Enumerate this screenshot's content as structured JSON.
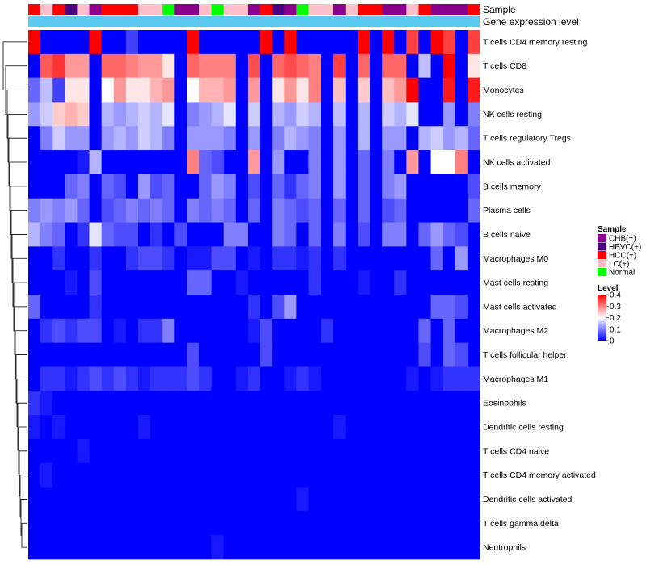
{
  "chart_data": {
    "type": "heatmap",
    "annotation_labels": {
      "sample": "Sample",
      "gene_expression": "Gene expression level"
    },
    "rows": [
      "T cells CD4 memory resting",
      "T cells CD8",
      "Monocytes",
      "NK cells resting",
      "T cells regulatory  Tregs",
      "NK cells activated",
      "B cells memory",
      "Plasma cells",
      "B cells naive",
      "Macrophages M0",
      "Mast cells resting",
      "Mast cells activated",
      "Macrophages M2",
      "T cells follicular helper",
      "Macrophages M1",
      "Eosinophils",
      "Dendritic cells resting",
      "T cells CD4 naive",
      "T cells CD4 memory activated",
      "Dendritic cells activated",
      "T cells gamma delta",
      "Neutrophils"
    ],
    "column_samples": [
      "HCC(+)",
      "LC(+)",
      "HCC(+)",
      "HBVC(+)",
      "LC(+)",
      "CHB(+)",
      "HCC(+)",
      "HCC(+)",
      "HCC(+)",
      "LC(+)",
      "LC(+)",
      "Normal",
      "CHB(+)",
      "CHB(+)",
      "LC(+)",
      "Normal",
      "LC(+)",
      "LC(+)",
      "CHB(+)",
      "HCC(+)",
      "HBVC(+)",
      "CHB(+)",
      "Normal",
      "LC(+)",
      "LC(+)",
      "CHB(+)",
      "LC(+)",
      "HCC(+)",
      "HCC(+)",
      "CHB(+)",
      "CHB(+)",
      "LC(+)",
      "HCC(+)",
      "CHB(+)",
      "CHB(+)",
      "CHB(+)",
      "HCC(+)"
    ],
    "values": [
      [
        0.4,
        0.0,
        0.0,
        0.0,
        0.0,
        0.4,
        0.0,
        0.0,
        0.05,
        0.0,
        0.0,
        0.0,
        0.0,
        0.4,
        0.0,
        0.0,
        0.0,
        0.0,
        0.0,
        0.4,
        0.0,
        0.4,
        0.0,
        0.0,
        0.0,
        0.0,
        0.0,
        0.4,
        0.0,
        0.4,
        0.0,
        0.35,
        0.0,
        0.4,
        0.35,
        0.0,
        0.35
      ],
      [
        0.0,
        0.33,
        0.36,
        0.28,
        0.28,
        0.0,
        0.32,
        0.32,
        0.3,
        0.28,
        0.28,
        0.22,
        0.0,
        0.32,
        0.3,
        0.3,
        0.3,
        0.0,
        0.34,
        0.0,
        0.32,
        0.34,
        0.32,
        0.3,
        0.0,
        0.35,
        0.0,
        0.32,
        0.0,
        0.32,
        0.32,
        0.0,
        0.15,
        0.0,
        0.4,
        0.0,
        0.22
      ],
      [
        0.08,
        0.15,
        0.05,
        0.22,
        0.22,
        0.0,
        0.2,
        0.28,
        0.22,
        0.22,
        0.26,
        0.28,
        0.0,
        0.2,
        0.26,
        0.26,
        0.28,
        0.0,
        0.28,
        0.0,
        0.22,
        0.28,
        0.22,
        0.3,
        0.0,
        0.25,
        0.0,
        0.24,
        0.0,
        0.25,
        0.28,
        0.4,
        0.0,
        0.0,
        0.38,
        0.0,
        0.38
      ],
      [
        0.12,
        0.16,
        0.24,
        0.26,
        0.24,
        0.0,
        0.14,
        0.12,
        0.14,
        0.16,
        0.14,
        0.18,
        0.0,
        0.1,
        0.12,
        0.14,
        0.18,
        0.0,
        0.16,
        0.0,
        0.14,
        0.12,
        0.16,
        0.14,
        0.0,
        0.15,
        0.0,
        0.14,
        0.0,
        0.16,
        0.14,
        0.18,
        0.0,
        0.0,
        0.12,
        0.0,
        0.1
      ],
      [
        0.0,
        0.1,
        0.16,
        0.12,
        0.12,
        0.0,
        0.12,
        0.14,
        0.12,
        0.16,
        0.14,
        0.1,
        0.0,
        0.12,
        0.12,
        0.12,
        0.1,
        0.0,
        0.12,
        0.0,
        0.1,
        0.14,
        0.12,
        0.1,
        0.0,
        0.12,
        0.0,
        0.14,
        0.0,
        0.12,
        0.12,
        0.0,
        0.14,
        0.16,
        0.12,
        0.14,
        0.08
      ],
      [
        0.0,
        0.0,
        0.0,
        0.0,
        0.02,
        0.14,
        0.0,
        0.0,
        0.0,
        0.0,
        0.0,
        0.0,
        0.0,
        0.3,
        0.08,
        0.06,
        0.0,
        0.0,
        0.28,
        0.0,
        0.12,
        0.0,
        0.0,
        0.1,
        0.0,
        0.12,
        0.0,
        0.08,
        0.0,
        0.1,
        0.0,
        0.28,
        0.0,
        0.2,
        0.2,
        0.3,
        0.0
      ],
      [
        0.0,
        0.0,
        0.0,
        0.08,
        0.1,
        0.0,
        0.08,
        0.06,
        0.0,
        0.12,
        0.06,
        0.08,
        0.0,
        0.0,
        0.08,
        0.12,
        0.1,
        0.0,
        0.06,
        0.0,
        0.08,
        0.04,
        0.08,
        0.1,
        0.0,
        0.12,
        0.0,
        0.08,
        0.0,
        0.1,
        0.12,
        0.0,
        0.0,
        0.0,
        0.0,
        0.0,
        0.06
      ],
      [
        0.1,
        0.12,
        0.1,
        0.12,
        0.08,
        0.0,
        0.06,
        0.08,
        0.1,
        0.08,
        0.1,
        0.08,
        0.0,
        0.1,
        0.08,
        0.1,
        0.08,
        0.0,
        0.08,
        0.0,
        0.1,
        0.08,
        0.06,
        0.08,
        0.0,
        0.08,
        0.0,
        0.08,
        0.0,
        0.06,
        0.08,
        0.0,
        0.0,
        0.0,
        0.0,
        0.0,
        0.08
      ],
      [
        0.14,
        0.1,
        0.08,
        0.0,
        0.04,
        0.18,
        0.08,
        0.06,
        0.06,
        0.0,
        0.04,
        0.0,
        0.06,
        0.0,
        0.0,
        0.0,
        0.1,
        0.1,
        0.0,
        0.0,
        0.1,
        0.08,
        0.0,
        0.08,
        0.0,
        0.1,
        0.0,
        0.06,
        0.0,
        0.1,
        0.1,
        0.0,
        0.08,
        0.12,
        0.08,
        0.06,
        0.0
      ],
      [
        0.0,
        0.0,
        0.04,
        0.0,
        0.0,
        0.04,
        0.0,
        0.0,
        0.04,
        0.06,
        0.06,
        0.04,
        0.0,
        0.02,
        0.02,
        0.06,
        0.06,
        0.0,
        0.02,
        0.0,
        0.04,
        0.04,
        0.02,
        0.04,
        0.0,
        0.04,
        0.0,
        0.0,
        0.0,
        0.0,
        0.0,
        0.0,
        0.0,
        0.08,
        0.0,
        0.12,
        0.0
      ],
      [
        0.0,
        0.0,
        0.0,
        0.02,
        0.0,
        0.06,
        0.0,
        0.0,
        0.0,
        0.0,
        0.0,
        0.0,
        0.0,
        0.08,
        0.08,
        0.0,
        0.0,
        0.02,
        0.0,
        0.0,
        0.0,
        0.0,
        0.0,
        0.04,
        0.0,
        0.0,
        0.0,
        0.02,
        0.0,
        0.0,
        0.04,
        0.0,
        0.0,
        0.0,
        0.0,
        0.0,
        0.0
      ],
      [
        0.08,
        0.0,
        0.0,
        0.0,
        0.0,
        0.04,
        0.0,
        0.0,
        0.0,
        0.0,
        0.0,
        0.0,
        0.0,
        0.0,
        0.0,
        0.0,
        0.0,
        0.0,
        0.04,
        0.0,
        0.06,
        0.12,
        0.0,
        0.0,
        0.0,
        0.0,
        0.0,
        0.0,
        0.0,
        0.0,
        0.0,
        0.0,
        0.0,
        0.08,
        0.08,
        0.06,
        0.0
      ],
      [
        0.0,
        0.04,
        0.06,
        0.04,
        0.06,
        0.06,
        0.0,
        0.02,
        0.0,
        0.04,
        0.04,
        0.1,
        0.0,
        0.0,
        0.0,
        0.0,
        0.0,
        0.0,
        0.02,
        0.06,
        0.0,
        0.0,
        0.0,
        0.0,
        0.04,
        0.0,
        0.0,
        0.0,
        0.0,
        0.0,
        0.0,
        0.0,
        0.08,
        0.0,
        0.08,
        0.0,
        0.0
      ],
      [
        0.0,
        0.0,
        0.0,
        0.0,
        0.0,
        0.0,
        0.0,
        0.0,
        0.0,
        0.0,
        0.0,
        0.0,
        0.0,
        0.06,
        0.0,
        0.0,
        0.0,
        0.0,
        0.0,
        0.06,
        0.0,
        0.0,
        0.0,
        0.0,
        0.0,
        0.0,
        0.0,
        0.0,
        0.0,
        0.0,
        0.0,
        0.0,
        0.06,
        0.0,
        0.08,
        0.06,
        0.0
      ],
      [
        0.0,
        0.04,
        0.04,
        0.02,
        0.04,
        0.06,
        0.04,
        0.06,
        0.04,
        0.02,
        0.04,
        0.04,
        0.04,
        0.06,
        0.04,
        0.0,
        0.0,
        0.02,
        0.04,
        0.0,
        0.0,
        0.02,
        0.04,
        0.02,
        0.0,
        0.0,
        0.0,
        0.0,
        0.0,
        0.0,
        0.0,
        0.02,
        0.0,
        0.02,
        0.04,
        0.04,
        0.04
      ],
      [
        0.04,
        0.02,
        0.0,
        0.0,
        0.0,
        0.0,
        0.0,
        0.0,
        0.0,
        0.0,
        0.0,
        0.0,
        0.0,
        0.0,
        0.0,
        0.0,
        0.0,
        0.0,
        0.0,
        0.0,
        0.0,
        0.0,
        0.0,
        0.0,
        0.0,
        0.0,
        0.0,
        0.0,
        0.0,
        0.0,
        0.0,
        0.0,
        0.0,
        0.0,
        0.0,
        0.0,
        0.0
      ],
      [
        0.02,
        0.0,
        0.02,
        0.0,
        0.0,
        0.0,
        0.0,
        0.0,
        0.0,
        0.02,
        0.0,
        0.0,
        0.0,
        0.0,
        0.0,
        0.0,
        0.0,
        0.0,
        0.0,
        0.0,
        0.0,
        0.0,
        0.0,
        0.0,
        0.0,
        0.02,
        0.0,
        0.0,
        0.0,
        0.0,
        0.0,
        0.0,
        0.0,
        0.0,
        0.0,
        0.0,
        0.0
      ],
      [
        0.0,
        0.0,
        0.0,
        0.0,
        0.02,
        0.0,
        0.0,
        0.0,
        0.0,
        0.0,
        0.0,
        0.0,
        0.0,
        0.0,
        0.0,
        0.0,
        0.0,
        0.0,
        0.0,
        0.0,
        0.0,
        0.0,
        0.0,
        0.0,
        0.0,
        0.0,
        0.0,
        0.0,
        0.0,
        0.0,
        0.0,
        0.0,
        0.0,
        0.0,
        0.0,
        0.0,
        0.0
      ],
      [
        0.0,
        0.02,
        0.0,
        0.0,
        0.0,
        0.0,
        0.0,
        0.0,
        0.0,
        0.0,
        0.0,
        0.0,
        0.0,
        0.0,
        0.0,
        0.0,
        0.0,
        0.0,
        0.0,
        0.0,
        0.0,
        0.0,
        0.0,
        0.0,
        0.0,
        0.0,
        0.0,
        0.0,
        0.0,
        0.0,
        0.0,
        0.0,
        0.0,
        0.0,
        0.0,
        0.0,
        0.0
      ],
      [
        0.0,
        0.0,
        0.0,
        0.0,
        0.0,
        0.0,
        0.0,
        0.0,
        0.0,
        0.0,
        0.0,
        0.0,
        0.0,
        0.0,
        0.0,
        0.0,
        0.0,
        0.0,
        0.0,
        0.0,
        0.0,
        0.0,
        0.02,
        0.0,
        0.0,
        0.0,
        0.0,
        0.0,
        0.0,
        0.0,
        0.0,
        0.0,
        0.0,
        0.0,
        0.0,
        0.0,
        0.0
      ],
      [
        0.0,
        0.0,
        0.0,
        0.0,
        0.0,
        0.0,
        0.0,
        0.0,
        0.0,
        0.0,
        0.0,
        0.0,
        0.0,
        0.0,
        0.0,
        0.0,
        0.0,
        0.0,
        0.0,
        0.0,
        0.0,
        0.0,
        0.0,
        0.0,
        0.0,
        0.0,
        0.0,
        0.0,
        0.0,
        0.0,
        0.0,
        0.0,
        0.0,
        0.0,
        0.0,
        0.0,
        0.0
      ],
      [
        0.0,
        0.0,
        0.0,
        0.0,
        0.0,
        0.0,
        0.0,
        0.0,
        0.0,
        0.0,
        0.0,
        0.0,
        0.0,
        0.0,
        0.0,
        0.02,
        0.0,
        0.0,
        0.0,
        0.0,
        0.0,
        0.0,
        0.0,
        0.0,
        0.0,
        0.0,
        0.0,
        0.0,
        0.0,
        0.0,
        0.0,
        0.0,
        0.0,
        0.0,
        0.0,
        0.0,
        0.0
      ]
    ],
    "color_scale": {
      "min": 0,
      "max": 0.4,
      "low": "#0000FF",
      "mid": "#FFFFFF",
      "high": "#FF0000"
    },
    "legend_sample": {
      "title": "Sample",
      "items": [
        {
          "label": "CHB(+)",
          "color": "#8B008B"
        },
        {
          "label": "HBVC(+)",
          "color": "#4B0082"
        },
        {
          "label": "HCC(+)",
          "color": "#FF0000"
        },
        {
          "label": "LC(+)",
          "color": "#FFC0CB"
        },
        {
          "label": "Normal",
          "color": "#00FF00"
        }
      ]
    },
    "legend_level": {
      "title": "Level",
      "ticks": [
        "0.4",
        "0.3",
        "0.2",
        "0.1",
        "0"
      ]
    },
    "gene_expression_bar_color": "#5BC8EF"
  }
}
